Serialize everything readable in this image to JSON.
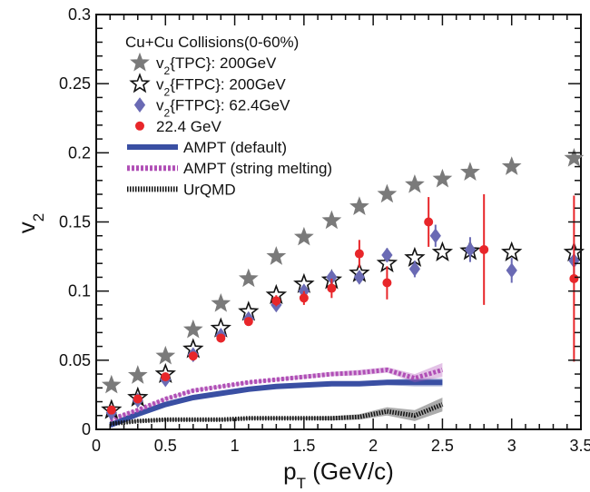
{
  "chart_data": {
    "type": "scatter",
    "title": "",
    "xlabel": "p",
    "xlabel_sub": "T",
    "xlabel_unit": " (GeV/c)",
    "ylabel": "v",
    "ylabel_sub": "2",
    "xlim": [
      0,
      3.5
    ],
    "ylim": [
      0,
      0.3
    ],
    "x_ticks": [
      0,
      0.5,
      1,
      1.5,
      2,
      2.5,
      3,
      3.5
    ],
    "x_tick_labels": [
      "0",
      "0.5",
      "1",
      "1.5",
      "2",
      "2.5",
      "3",
      "3.5"
    ],
    "y_ticks": [
      0,
      0.05,
      0.1,
      0.15,
      0.2,
      0.25,
      0.3
    ],
    "y_tick_labels": [
      "0",
      "0.05",
      "0.1",
      "0.15",
      "0.2",
      "0.25",
      "0.3"
    ],
    "grid": false,
    "legend_position": "top-left",
    "legend_header": "Cu+Cu Collisions(0-60%)",
    "series": [
      {
        "name": "v2{TPC}: 200GeV",
        "name_main": "v",
        "name_sub": "2",
        "name_rest": "{TPC}: 200GeV",
        "kind": "marker",
        "marker": "star-filled",
        "color": "#7a7a7a",
        "x": [
          0.11,
          0.3,
          0.5,
          0.7,
          0.9,
          1.1,
          1.3,
          1.5,
          1.7,
          1.9,
          2.1,
          2.3,
          2.5,
          2.7,
          3.0,
          3.45
        ],
        "y": [
          0.032,
          0.039,
          0.053,
          0.072,
          0.091,
          0.109,
          0.125,
          0.139,
          0.151,
          0.161,
          0.17,
          0.177,
          0.181,
          0.186,
          0.19,
          0.196
        ],
        "err": [
          0,
          0,
          0,
          0,
          0,
          0,
          0,
          0,
          0,
          0,
          0,
          0,
          0,
          0,
          0,
          0
        ]
      },
      {
        "name": "v2{FTPC}: 200GeV",
        "name_main": "v",
        "name_sub": "2",
        "name_rest": "{FTPC}: 200GeV",
        "kind": "marker",
        "marker": "star-open",
        "color": "#111111",
        "x": [
          0.11,
          0.3,
          0.5,
          0.7,
          0.9,
          1.1,
          1.3,
          1.5,
          1.7,
          1.9,
          2.1,
          2.3,
          2.5,
          2.7,
          3.0,
          3.45
        ],
        "y": [
          0.014,
          0.023,
          0.04,
          0.058,
          0.073,
          0.085,
          0.097,
          0.105,
          0.108,
          0.113,
          0.12,
          0.124,
          0.128,
          0.129,
          0.128,
          0.128
        ],
        "err": [
          0,
          0,
          0,
          0,
          0,
          0,
          0,
          0,
          0,
          0,
          0,
          0,
          0,
          0,
          0,
          0
        ]
      },
      {
        "name": "v2{FTPC}: 62.4GeV",
        "name_main": "v",
        "name_sub": "2",
        "name_rest": "{FTPC}: 62.4GeV",
        "kind": "marker",
        "marker": "diamond",
        "color": "#6a6ab4",
        "x": [
          0.11,
          0.3,
          0.5,
          0.7,
          0.9,
          1.1,
          1.3,
          1.5,
          1.7,
          1.9,
          2.1,
          2.3,
          2.45,
          2.7,
          3.0,
          3.45
        ],
        "y": [
          0.012,
          0.021,
          0.036,
          0.054,
          0.068,
          0.08,
          0.09,
          0.1,
          0.11,
          0.11,
          0.126,
          0.116,
          0.14,
          0.13,
          0.115,
          0.122
        ],
        "err": [
          0,
          0,
          0,
          0,
          0,
          0,
          0,
          0,
          0.003,
          0.004,
          0.005,
          0.006,
          0.008,
          0.009,
          0.009,
          0.012
        ]
      },
      {
        "name": "22.4 GeV",
        "kind": "marker",
        "marker": "circle",
        "color": "#e8262a",
        "x": [
          0.11,
          0.3,
          0.5,
          0.7,
          0.9,
          1.1,
          1.3,
          1.5,
          1.7,
          1.9,
          2.1,
          2.4,
          2.8,
          3.45
        ],
        "y": [
          0.014,
          0.022,
          0.038,
          0.053,
          0.066,
          0.078,
          0.093,
          0.095,
          0.102,
          0.127,
          0.106,
          0.15,
          0.13,
          0.109
        ],
        "err": [
          0.002,
          0.002,
          0.002,
          0.003,
          0.003,
          0.003,
          0.004,
          0.005,
          0.007,
          0.01,
          0.012,
          0.018,
          0.04,
          0.06
        ]
      },
      {
        "name": "AMPT (default)",
        "kind": "band",
        "style": "solid",
        "color": "#3a4fa3",
        "x": [
          0.1,
          0.3,
          0.5,
          0.7,
          0.9,
          1.1,
          1.3,
          1.5,
          1.7,
          1.9,
          2.1,
          2.3,
          2.5
        ],
        "y": [
          0.003,
          0.011,
          0.018,
          0.023,
          0.026,
          0.029,
          0.031,
          0.032,
          0.033,
          0.033,
          0.034,
          0.034,
          0.034
        ],
        "err": [
          0.001,
          0.001,
          0.001,
          0.001,
          0.001,
          0.001,
          0.001,
          0.001,
          0.0015,
          0.0015,
          0.002,
          0.003,
          0.003
        ]
      },
      {
        "name": "AMPT (string melting)",
        "kind": "band",
        "style": "dashed",
        "color": "#b04fb6",
        "x": [
          0.1,
          0.3,
          0.5,
          0.7,
          0.9,
          1.1,
          1.3,
          1.5,
          1.7,
          1.9,
          2.1,
          2.3,
          2.5
        ],
        "y": [
          0.007,
          0.014,
          0.022,
          0.028,
          0.031,
          0.034,
          0.036,
          0.038,
          0.04,
          0.041,
          0.043,
          0.037,
          0.043
        ],
        "err": [
          0.001,
          0.001,
          0.001,
          0.001,
          0.001,
          0.001,
          0.001,
          0.0015,
          0.0015,
          0.002,
          0.002,
          0.003,
          0.005
        ]
      },
      {
        "name": "UrQMD",
        "kind": "band",
        "style": "dotted",
        "color": "#111111",
        "x": [
          0.1,
          0.3,
          0.5,
          0.7,
          0.9,
          1.1,
          1.3,
          1.5,
          1.7,
          1.9,
          2.1,
          2.3,
          2.5
        ],
        "y": [
          0.004,
          0.006,
          0.007,
          0.007,
          0.007,
          0.008,
          0.008,
          0.008,
          0.008,
          0.009,
          0.013,
          0.01,
          0.018
        ],
        "err": [
          0.001,
          0.001,
          0.001,
          0.001,
          0.001,
          0.001,
          0.001,
          0.001,
          0.0015,
          0.002,
          0.003,
          0.004,
          0.005
        ]
      }
    ]
  }
}
